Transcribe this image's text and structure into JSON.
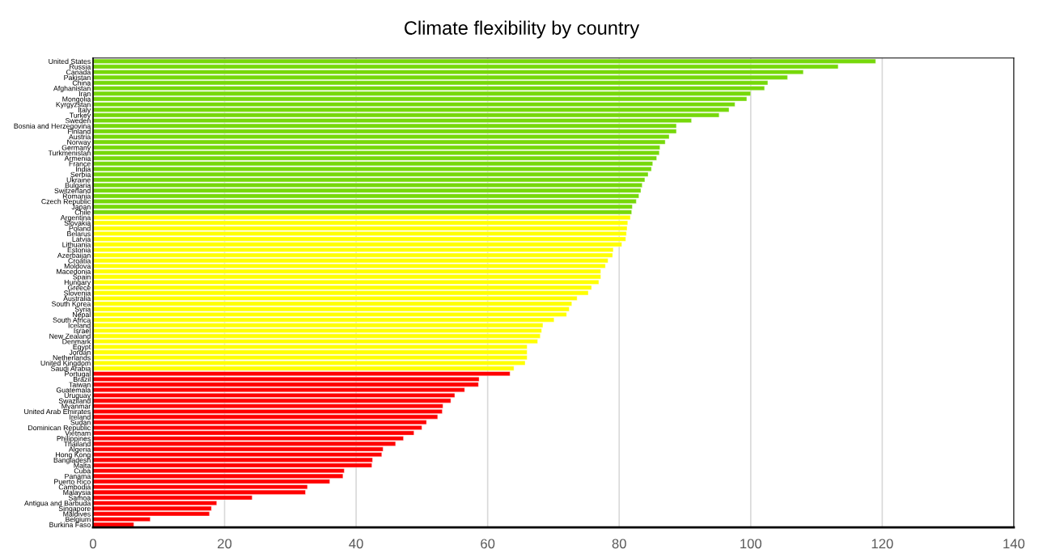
{
  "chart_data": {
    "type": "bar",
    "orientation": "horizontal",
    "title": "Climate flexibility by country",
    "categories": [
      "United States",
      "Russia",
      "Canada",
      "Pakistan",
      "China",
      "Afghanistan",
      "Iran",
      "Mongolia",
      "Kyrgyzstan",
      "Italy",
      "Turkey",
      "Sweden",
      "Bosnia and Herzegovina",
      "Finland",
      "Austria",
      "Norway",
      "Germany",
      "Turkmenistan",
      "Armenia",
      "France",
      "India",
      "Serbia",
      "Ukraine",
      "Bulgaria",
      "Switzerland",
      "Romania",
      "Czech Republic",
      "Japan",
      "Chile",
      "Argentina",
      "Slovakia",
      "Poland",
      "Belarus",
      "Latvia",
      "Lithuania",
      "Estonia",
      "Azerbaijan",
      "Croatia",
      "Moldova",
      "Macedonia",
      "Spain",
      "Hungary",
      "Greece",
      "Slovenia",
      "Australia",
      "South Korea",
      "Syria",
      "Nepal",
      "South Africa",
      "Iceland",
      "Israel",
      "New Zealand",
      "Denmark",
      "Egypt",
      "Jordan",
      "Netherlands",
      "United Kingdom",
      "Saudi Arabia",
      "Portugal",
      "Brazil",
      "Taiwan",
      "Guatemala",
      "Uruguay",
      "Swaziland",
      "Myanmar",
      "United Arab Emirates",
      "Ireland",
      "Sudan",
      "Dominican Republic",
      "Vietnam",
      "Philippines",
      "Thailand",
      "Algeria",
      "Hong Kong",
      "Bangladesh",
      "Malta",
      "Cuba",
      "Panama",
      "Puerto Rico",
      "Cambodia",
      "Malaysia",
      "Samoa",
      "Antigua and Barbuda",
      "Singapore",
      "Maldives",
      "Belgium",
      "Burkina Faso"
    ],
    "values": [
      119.0,
      113.3,
      108.0,
      105.6,
      102.6,
      102.1,
      100.0,
      99.4,
      97.6,
      96.7,
      95.2,
      91.0,
      88.7,
      88.7,
      87.6,
      87.0,
      86.2,
      86.1,
      85.7,
      85.1,
      84.9,
      84.4,
      83.9,
      83.5,
      83.3,
      83.0,
      82.6,
      82.0,
      81.9,
      81.7,
      81.3,
      81.2,
      81.1,
      81.0,
      80.4,
      79.1,
      79.0,
      78.3,
      77.9,
      77.2,
      77.2,
      76.9,
      75.8,
      75.3,
      73.6,
      72.8,
      72.4,
      72.0,
      70.1,
      68.4,
      68.2,
      68.0,
      67.6,
      66.0,
      66.0,
      66.0,
      65.7,
      64.0,
      63.4,
      58.7,
      58.6,
      56.5,
      55.0,
      54.4,
      53.2,
      53.1,
      52.4,
      50.7,
      50.0,
      48.8,
      47.2,
      46.0,
      44.1,
      43.9,
      42.5,
      42.4,
      38.2,
      38.0,
      36.0,
      32.6,
      32.3,
      24.2,
      18.8,
      18.0,
      17.7,
      8.7,
      6.2
    ],
    "colors": [
      "#76d80a",
      "#76d80a",
      "#76d80a",
      "#76d80a",
      "#76d80a",
      "#76d80a",
      "#76d80a",
      "#76d80a",
      "#76d80a",
      "#76d80a",
      "#76d80a",
      "#76d80a",
      "#76d80a",
      "#76d80a",
      "#76d80a",
      "#76d80a",
      "#76d80a",
      "#76d80a",
      "#76d80a",
      "#76d80a",
      "#76d80a",
      "#76d80a",
      "#76d80a",
      "#76d80a",
      "#76d80a",
      "#76d80a",
      "#76d80a",
      "#76d80a",
      "#76d80a",
      "#ffff00",
      "#ffff00",
      "#ffff00",
      "#ffff00",
      "#ffff00",
      "#ffff00",
      "#ffff00",
      "#ffff00",
      "#ffff00",
      "#ffff00",
      "#ffff00",
      "#ffff00",
      "#ffff00",
      "#ffff00",
      "#ffff00",
      "#ffff00",
      "#ffff00",
      "#ffff00",
      "#ffff00",
      "#ffff00",
      "#ffff00",
      "#ffff00",
      "#ffff00",
      "#ffff00",
      "#ffff00",
      "#ffff00",
      "#ffff00",
      "#ffff00",
      "#ffff00",
      "#ff0000",
      "#ff0000",
      "#ff0000",
      "#ff0000",
      "#ff0000",
      "#ff0000",
      "#ff0000",
      "#ff0000",
      "#ff0000",
      "#ff0000",
      "#ff0000",
      "#ff0000",
      "#ff0000",
      "#ff0000",
      "#ff0000",
      "#ff0000",
      "#ff0000",
      "#ff0000",
      "#ff0000",
      "#ff0000",
      "#ff0000",
      "#ff0000",
      "#ff0000",
      "#ff0000",
      "#ff0000",
      "#ff0000",
      "#ff0000",
      "#ff0000",
      "#ff0000"
    ],
    "xlim": [
      0,
      140
    ],
    "xticks": [
      0,
      20,
      40,
      60,
      80,
      100,
      120,
      140
    ],
    "grid": "x"
  }
}
